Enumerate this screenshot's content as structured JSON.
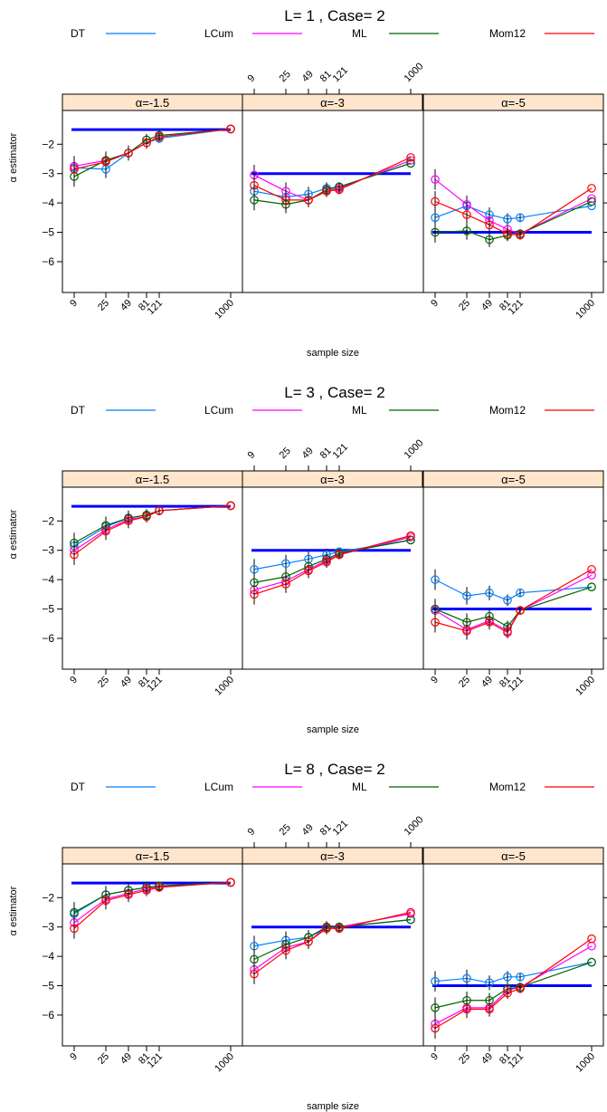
{
  "chart_data": [
    {
      "type": "line",
      "title": "L= 1 , Case= 2",
      "xlabel": "sample size",
      "ylabel": "α estimator",
      "x_ticks": [
        9,
        25,
        49,
        81,
        121,
        1000
      ],
      "y_ticks": [
        -2,
        -3,
        -4,
        -5,
        -6
      ],
      "ylim": [
        -7.05,
        -0.85
      ],
      "legend": [
        "DT",
        "LCum",
        "ML",
        "Mom12"
      ],
      "panels": [
        {
          "strip": "α=-1.5",
          "true_value": -1.5,
          "series": [
            {
              "name": "DT",
              "x": [
                9,
                25,
                49,
                81,
                121,
                1000
              ],
              "y": [
                -2.8,
                -2.85,
                -2.3,
                -1.95,
                -1.8,
                -1.48
              ]
            },
            {
              "name": "LCum",
              "x": [
                9,
                25,
                49,
                81,
                121,
                1000
              ],
              "y": [
                -2.75,
                -2.55,
                -2.3,
                -1.95,
                -1.75,
                -1.48
              ]
            },
            {
              "name": "ML",
              "x": [
                9,
                25,
                49,
                81,
                121,
                1000
              ],
              "y": [
                -3.1,
                -2.55,
                -2.3,
                -1.85,
                -1.7,
                -1.48
              ]
            },
            {
              "name": "Mom12",
              "x": [
                9,
                25,
                49,
                81,
                121,
                1000
              ],
              "y": [
                -2.85,
                -2.6,
                -2.3,
                -1.95,
                -1.75,
                -1.48
              ]
            }
          ]
        },
        {
          "strip": "α=-3",
          "true_value": -3,
          "series": [
            {
              "name": "DT",
              "x": [
                9,
                25,
                49,
                81,
                121,
                1000
              ],
              "y": [
                -3.6,
                -3.8,
                -3.7,
                -3.5,
                -3.45,
                -2.65
              ]
            },
            {
              "name": "LCum",
              "x": [
                9,
                25,
                49,
                81,
                121,
                1000
              ],
              "y": [
                -3.05,
                -3.6,
                -3.9,
                -3.6,
                -3.5,
                -2.55
              ]
            },
            {
              "name": "ML",
              "x": [
                9,
                25,
                49,
                81,
                121,
                1000
              ],
              "y": [
                -3.9,
                -4.05,
                -3.9,
                -3.55,
                -3.45,
                -2.65
              ]
            },
            {
              "name": "Mom12",
              "x": [
                9,
                25,
                49,
                81,
                121,
                1000
              ],
              "y": [
                -3.4,
                -3.9,
                -3.9,
                -3.6,
                -3.55,
                -2.45
              ]
            }
          ]
        },
        {
          "strip": "α=-5",
          "true_value": -5,
          "series": [
            {
              "name": "DT",
              "x": [
                9,
                25,
                49,
                81,
                121,
                1000
              ],
              "y": [
                -4.5,
                -4.1,
                -4.4,
                -4.55,
                -4.5,
                -4.1
              ]
            },
            {
              "name": "LCum",
              "x": [
                9,
                25,
                49,
                81,
                121,
                1000
              ],
              "y": [
                -3.2,
                -4.05,
                -4.6,
                -4.9,
                -5.05,
                -3.85
              ]
            },
            {
              "name": "ML",
              "x": [
                9,
                25,
                49,
                81,
                121,
                1000
              ],
              "y": [
                -5.0,
                -4.95,
                -5.25,
                -5.1,
                -5.05,
                -3.95
              ]
            },
            {
              "name": "Mom12",
              "x": [
                9,
                25,
                49,
                81,
                121,
                1000
              ],
              "y": [
                -3.95,
                -4.4,
                -4.75,
                -5.05,
                -5.1,
                -3.5
              ]
            }
          ]
        }
      ]
    },
    {
      "type": "line",
      "title": "L= 3 , Case= 2",
      "xlabel": "sample size",
      "ylabel": "α estimator",
      "x_ticks": [
        9,
        25,
        49,
        81,
        121,
        1000
      ],
      "y_ticks": [
        -2,
        -3,
        -4,
        -5,
        -6
      ],
      "ylim": [
        -7.05,
        -0.85
      ],
      "legend": [
        "DT",
        "LCum",
        "ML",
        "Mom12"
      ],
      "panels": [
        {
          "strip": "α=-1.5",
          "true_value": -1.5,
          "series": [
            {
              "name": "DT",
              "x": [
                9,
                25,
                49,
                81,
                121,
                1000
              ],
              "y": [
                -2.85,
                -2.2,
                -1.9,
                -1.8,
                -1.65,
                -1.48
              ]
            },
            {
              "name": "LCum",
              "x": [
                9,
                25,
                49,
                81,
                121,
                1000
              ],
              "y": [
                -3.0,
                -2.3,
                -1.95,
                -1.85,
                -1.65,
                -1.48
              ]
            },
            {
              "name": "ML",
              "x": [
                9,
                25,
                49,
                81,
                121,
                1000
              ],
              "y": [
                -2.75,
                -2.15,
                -1.9,
                -1.8,
                -1.65,
                -1.48
              ]
            },
            {
              "name": "Mom12",
              "x": [
                9,
                25,
                49,
                81,
                121,
                1000
              ],
              "y": [
                -3.15,
                -2.35,
                -2.0,
                -1.85,
                -1.65,
                -1.48
              ]
            }
          ]
        },
        {
          "strip": "α=-3",
          "true_value": -3,
          "series": [
            {
              "name": "DT",
              "x": [
                9,
                25,
                49,
                81,
                121,
                1000
              ],
              "y": [
                -3.65,
                -3.45,
                -3.3,
                -3.15,
                -3.05,
                -2.65
              ]
            },
            {
              "name": "LCum",
              "x": [
                9,
                25,
                49,
                81,
                121,
                1000
              ],
              "y": [
                -4.35,
                -4.05,
                -3.65,
                -3.35,
                -3.15,
                -2.55
              ]
            },
            {
              "name": "ML",
              "x": [
                9,
                25,
                49,
                81,
                121,
                1000
              ],
              "y": [
                -4.1,
                -3.9,
                -3.55,
                -3.3,
                -3.1,
                -2.65
              ]
            },
            {
              "name": "Mom12",
              "x": [
                9,
                25,
                49,
                81,
                121,
                1000
              ],
              "y": [
                -4.5,
                -4.15,
                -3.7,
                -3.4,
                -3.15,
                -2.5
              ]
            }
          ]
        },
        {
          "strip": "α=-5",
          "true_value": -5,
          "series": [
            {
              "name": "DT",
              "x": [
                9,
                25,
                49,
                81,
                121,
                1000
              ],
              "y": [
                -4.0,
                -4.55,
                -4.45,
                -4.7,
                -4.45,
                -4.25
              ]
            },
            {
              "name": "LCum",
              "x": [
                9,
                25,
                49,
                81,
                121,
                1000
              ],
              "y": [
                -5.05,
                -5.7,
                -5.4,
                -5.75,
                -5.05,
                -3.85
              ]
            },
            {
              "name": "ML",
              "x": [
                9,
                25,
                49,
                81,
                121,
                1000
              ],
              "y": [
                -5.0,
                -5.45,
                -5.25,
                -5.6,
                -5.05,
                -4.25
              ]
            },
            {
              "name": "Mom12",
              "x": [
                9,
                25,
                49,
                81,
                121,
                1000
              ],
              "y": [
                -5.45,
                -5.75,
                -5.45,
                -5.8,
                -5.05,
                -3.65
              ]
            }
          ]
        }
      ]
    },
    {
      "type": "line",
      "title": "L= 8 , Case= 2",
      "xlabel": "sample size",
      "ylabel": "α estimator",
      "x_ticks": [
        9,
        25,
        49,
        81,
        121,
        1000
      ],
      "y_ticks": [
        -2,
        -3,
        -4,
        -5,
        -6
      ],
      "ylim": [
        -7.05,
        -0.85
      ],
      "legend": [
        "DT",
        "LCum",
        "ML",
        "Mom12"
      ],
      "panels": [
        {
          "strip": "α=-1.5",
          "true_value": -1.5,
          "series": [
            {
              "name": "DT",
              "x": [
                9,
                25,
                49,
                81,
                121,
                1000
              ],
              "y": [
                -2.55,
                -1.9,
                -1.75,
                -1.65,
                -1.6,
                -1.48
              ]
            },
            {
              "name": "LCum",
              "x": [
                9,
                25,
                49,
                81,
                121,
                1000
              ],
              "y": [
                -2.85,
                -2.05,
                -1.85,
                -1.7,
                -1.62,
                -1.48
              ]
            },
            {
              "name": "ML",
              "x": [
                9,
                25,
                49,
                81,
                121,
                1000
              ],
              "y": [
                -2.5,
                -1.9,
                -1.75,
                -1.65,
                -1.6,
                -1.48
              ]
            },
            {
              "name": "Mom12",
              "x": [
                9,
                25,
                49,
                81,
                121,
                1000
              ],
              "y": [
                -3.05,
                -2.1,
                -1.9,
                -1.75,
                -1.65,
                -1.48
              ]
            }
          ]
        },
        {
          "strip": "α=-3",
          "true_value": -3,
          "series": [
            {
              "name": "DT",
              "x": [
                9,
                25,
                49,
                81,
                121,
                1000
              ],
              "y": [
                -3.65,
                -3.45,
                -3.35,
                -3.05,
                -3.0,
                -2.75
              ]
            },
            {
              "name": "LCum",
              "x": [
                9,
                25,
                49,
                81,
                121,
                1000
              ],
              "y": [
                -4.45,
                -3.7,
                -3.5,
                -3.0,
                -3.0,
                -2.55
              ]
            },
            {
              "name": "ML",
              "x": [
                9,
                25,
                49,
                81,
                121,
                1000
              ],
              "y": [
                -4.1,
                -3.6,
                -3.35,
                -3.0,
                -3.0,
                -2.75
              ]
            },
            {
              "name": "Mom12",
              "x": [
                9,
                25,
                49,
                81,
                121,
                1000
              ],
              "y": [
                -4.6,
                -3.8,
                -3.5,
                -3.05,
                -3.05,
                -2.5
              ]
            }
          ]
        },
        {
          "strip": "α=-5",
          "true_value": -5,
          "series": [
            {
              "name": "DT",
              "x": [
                9,
                25,
                49,
                81,
                121,
                1000
              ],
              "y": [
                -4.85,
                -4.75,
                -4.9,
                -4.7,
                -4.7,
                -4.2
              ]
            },
            {
              "name": "LCum",
              "x": [
                9,
                25,
                49,
                81,
                121,
                1000
              ],
              "y": [
                -6.3,
                -5.75,
                -5.75,
                -5.15,
                -5.05,
                -3.65
              ]
            },
            {
              "name": "ML",
              "x": [
                9,
                25,
                49,
                81,
                121,
                1000
              ],
              "y": [
                -5.75,
                -5.5,
                -5.5,
                -5.1,
                -5.05,
                -4.2
              ]
            },
            {
              "name": "Mom12",
              "x": [
                9,
                25,
                49,
                81,
                121,
                1000
              ],
              "y": [
                -6.45,
                -5.8,
                -5.8,
                -5.25,
                -5.1,
                -3.4
              ]
            }
          ]
        }
      ]
    }
  ],
  "colors": {
    "DT": "#0080ff",
    "LCum": "#ff00ff",
    "ML": "#006400",
    "Mom12": "#ff0000",
    "true_line": "#0000ff",
    "strip": "#ffe5cc"
  }
}
